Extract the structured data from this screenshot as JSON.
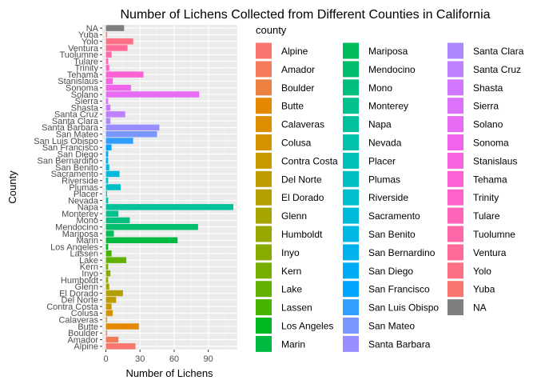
{
  "chart_data": {
    "type": "bar",
    "orientation": "horizontal",
    "title": "Number of Lichens Collected from Different Counties in California",
    "xlabel": "Number of Lichens",
    "ylabel": "County",
    "xlim": [
      0,
      112
    ],
    "x_ticks": [
      0,
      30,
      60,
      90
    ],
    "grid": true,
    "legend_title": "county",
    "legend_position": "right",
    "categories": [
      "Alpine",
      "Amador",
      "Boulder",
      "Butte",
      "Calaveras",
      "Colusa",
      "Contra Costa",
      "Del Norte",
      "El Dorado",
      "Glenn",
      "Humboldt",
      "Inyo",
      "Kern",
      "Lake",
      "Lassen",
      "Los Angeles",
      "Marin",
      "Mariposa",
      "Mendocino",
      "Mono",
      "Monterey",
      "Napa",
      "Nevada",
      "Placer",
      "Plumas",
      "Riverside",
      "Sacramento",
      "San Benito",
      "San Bernardino",
      "San Diego",
      "San Francisco",
      "San Luis Obispo",
      "San Mateo",
      "Santa Barbara",
      "Santa Clara",
      "Santa Cruz",
      "Shasta",
      "Sierra",
      "Solano",
      "Sonoma",
      "Stanislaus",
      "Tehama",
      "Trinity",
      "Tulare",
      "Tuolumne",
      "Ventura",
      "Yolo",
      "Yuba",
      "NA"
    ],
    "values": [
      26,
      11,
      1,
      29,
      1,
      6,
      5,
      9,
      15,
      3,
      2,
      4,
      2,
      18,
      5,
      2,
      63,
      7,
      81,
      21,
      11,
      112,
      2,
      1,
      13,
      2,
      12,
      3,
      2,
      2,
      5,
      24,
      45,
      47,
      4,
      17,
      4,
      2,
      82,
      22,
      6,
      33,
      3,
      2,
      5,
      19,
      24,
      1,
      16
    ],
    "colors": [
      "#F8766D",
      "#F37B59",
      "#ED8141",
      "#E58700",
      "#DC8D00",
      "#D39200",
      "#C99800",
      "#BE9C00",
      "#B3A000",
      "#A6A400",
      "#98A800",
      "#88AB00",
      "#76AF00",
      "#61B200",
      "#45B500",
      "#00B81F",
      "#00BA42",
      "#00BC59",
      "#00BE6C",
      "#00BF7D",
      "#00C08D",
      "#00C19C",
      "#00C1AA",
      "#00C0B8",
      "#00BFC4",
      "#00BDD0",
      "#00BADB",
      "#00B6E5",
      "#00B1EE",
      "#00ABF6",
      "#00A5FF",
      "#329EFF",
      "#7997FF",
      "#978FFF",
      "#AC88FF",
      "#BF80FF",
      "#CF78FF",
      "#DC71FA",
      "#E76BF3",
      "#F064EB",
      "#F863E1",
      "#FD62D5",
      "#FF62C8",
      "#FF64B9",
      "#FF67A9",
      "#FF6A98",
      "#FD6F85",
      "#F8766D",
      "#7F7F7F"
    ]
  }
}
